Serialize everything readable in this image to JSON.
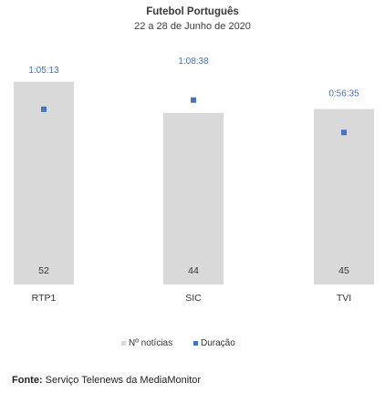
{
  "chart_data": {
    "type": "bar",
    "title": "Futebol Português",
    "subtitle": "22 a 28 de Junho de 2020",
    "categories": [
      "RTP1",
      "SIC",
      "TVI"
    ],
    "series": [
      {
        "name": "Nº notícias",
        "type": "bar",
        "values": [
          52,
          44,
          45
        ],
        "color": "#d9d9d9",
        "ylim": [
          0,
          58
        ]
      },
      {
        "name": "Duração",
        "type": "scatter",
        "values": [
          "1:05:13",
          "1:08:38",
          "0:56:35"
        ],
        "values_seconds": [
          3913,
          4118,
          3395
        ],
        "color": "#4472c4",
        "ylim_seconds": [
          0,
          5050
        ]
      }
    ],
    "legend": "bottom",
    "grid": false
  },
  "source": {
    "label": "Fonte:",
    "text": " Serviço Telenews da MediaMonitor"
  }
}
